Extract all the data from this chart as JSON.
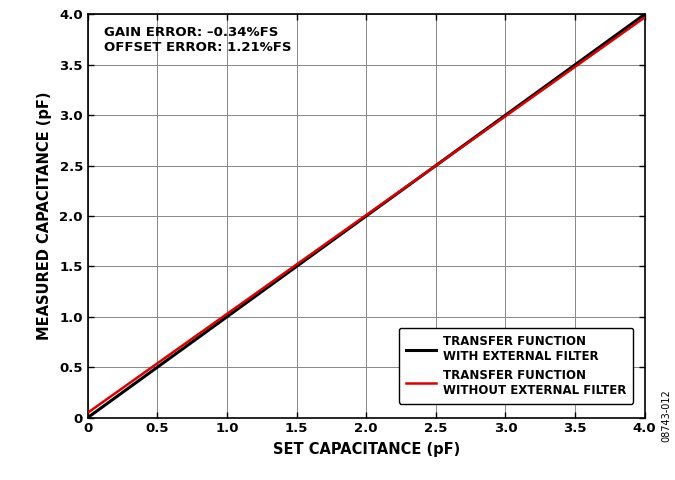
{
  "title": "",
  "xlabel": "SET CAPACITANCE (pF)",
  "ylabel": "MEASURED CAPACITANCE (pF)",
  "xlim": [
    0,
    4.0
  ],
  "ylim": [
    0,
    4.0
  ],
  "xticks": [
    0,
    0.5,
    1.0,
    1.5,
    2.0,
    2.5,
    3.0,
    3.5,
    4.0
  ],
  "yticks": [
    0,
    0.5,
    1.0,
    1.5,
    2.0,
    2.5,
    3.0,
    3.5,
    4.0
  ],
  "annotation_line1": "GAIN ERROR: –0.34%FS",
  "annotation_line2": "OFFSET ERROR: 1.21%FS",
  "black_line": {
    "x": [
      0,
      4.0
    ],
    "y": [
      0,
      4.0
    ],
    "color": "#000000",
    "linewidth": 2.2,
    "label_line1": "TRANSFER FUNCTION",
    "label_line2": "WITH EXTERNAL FILTER"
  },
  "red_line": {
    "x": [
      0,
      4.0
    ],
    "y": [
      0.048,
      3.97
    ],
    "color": "#dd0000",
    "linewidth": 1.8,
    "label_line1": "TRANSFER FUNCTION",
    "label_line2": "WITHOUT EXTERNAL FILTER"
  },
  "side_label": "08743-012",
  "background_color": "#ffffff",
  "grid_color": "#888888",
  "grid_linewidth": 0.7,
  "annotation_fontsize": 9.5,
  "axis_label_fontsize": 10.5,
  "tick_fontsize": 9.5,
  "legend_fontsize": 8.5
}
